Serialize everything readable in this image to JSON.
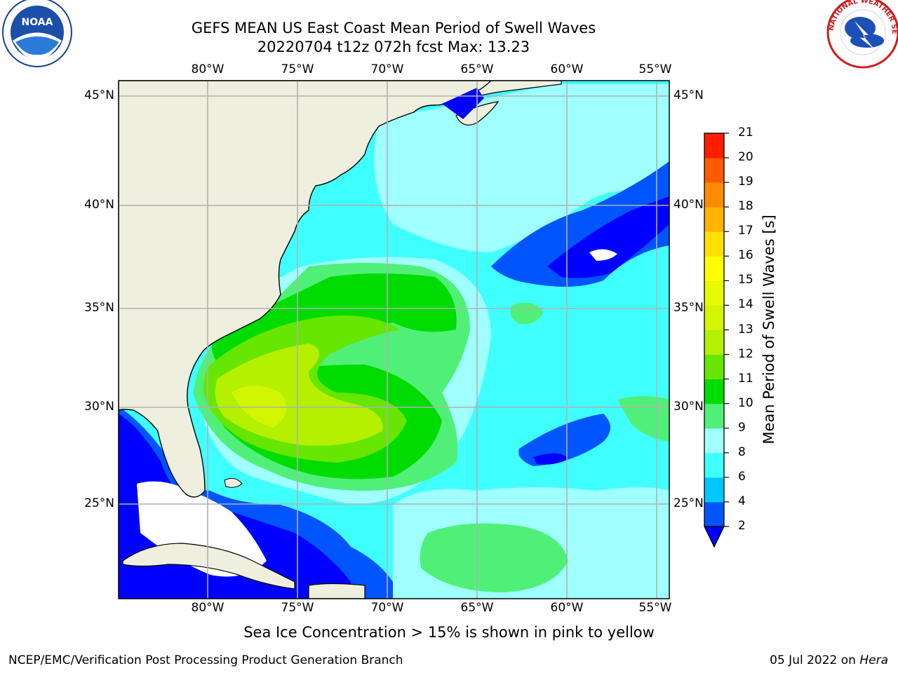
{
  "header": {
    "title_line1": "GEFS MEAN US East Coast Mean Period of Swell Waves",
    "title_line2": "20220704 t12z 072h fcst   Max: 13.23"
  },
  "logos": {
    "left": {
      "name": "noaa-logo",
      "text": "NOAA"
    },
    "right": {
      "name": "nws-logo",
      "text": "NATIONAL WEATHER SERVICE"
    }
  },
  "map": {
    "lon_labels": [
      "80°W",
      "75°W",
      "70°W",
      "65°W",
      "60°W",
      "55°W"
    ],
    "lat_labels": [
      "45°N",
      "40°N",
      "35°N",
      "30°N",
      "25°N"
    ],
    "extent": {
      "lon_min": -85,
      "lon_max": -54.2,
      "lat_min": 20.5,
      "lat_max": 45.8
    }
  },
  "colorbar": {
    "label": "Mean Period of Swell Waves [s]",
    "ticks": [
      "2",
      "4",
      "6",
      "8",
      "9",
      "10",
      "11",
      "12",
      "13",
      "14",
      "15",
      "16",
      "17",
      "18",
      "19",
      "20",
      "21"
    ],
    "colors": [
      "#0055ff",
      "#00c8ff",
      "#40ffff",
      "#a0ffff",
      "#50f078",
      "#00dc00",
      "#66e600",
      "#b4f000",
      "#d2f500",
      "#e6fa00",
      "#ffff00",
      "#ffe100",
      "#ffb400",
      "#ff8c00",
      "#ff5a00",
      "#ff1e00"
    ],
    "extend_color": "#0000ff"
  },
  "note": "Sea Ice Concentration > 15% is shown in pink to yellow",
  "footer": {
    "left": "NCEP/EMC/Verification Post Processing Product Generation Branch",
    "right_date": "05 Jul 2022 on ",
    "right_host": "Hera"
  }
}
